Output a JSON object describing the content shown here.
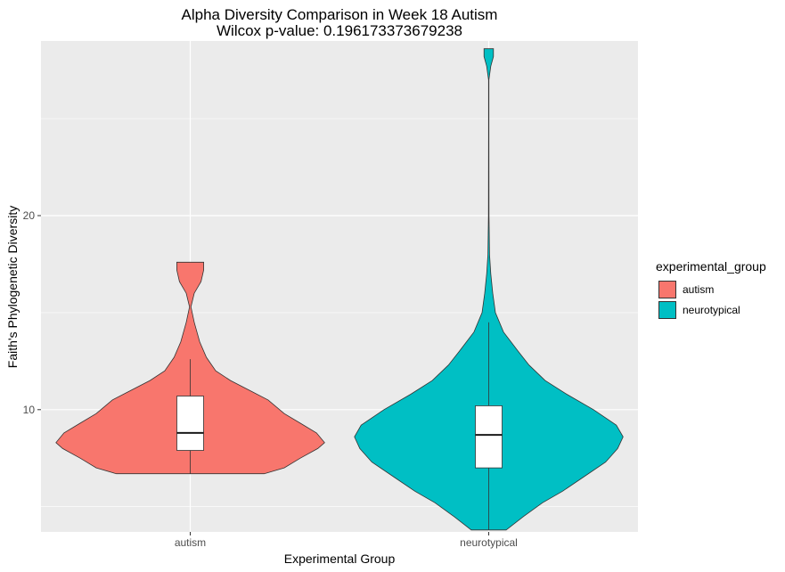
{
  "chart_data": {
    "type": "violin",
    "title": "Alpha Diversity Comparison in Week 18 Autism",
    "subtitle": "Wilcox p-value: 0.196173373679238",
    "xlabel": "Experimental Group",
    "ylabel": "Faith's Phylogenetic Diversity",
    "ylim": [
      3.7,
      29.0
    ],
    "yticks": [
      10,
      20
    ],
    "legend_title": "experimental_group",
    "legend_position": "right",
    "grid": true,
    "categories": [
      "autism",
      "neurotypical"
    ],
    "groups": [
      {
        "name": "autism",
        "color": "#F8766D",
        "box": {
          "whisker_low": 6.7,
          "q1": 7.9,
          "median": 8.8,
          "q3": 10.7,
          "whisker_high": 12.6
        },
        "violin_range": [
          6.7,
          17.6
        ],
        "violin_halfwidth": [
          [
            6.7,
            0.55
          ],
          [
            7.0,
            0.7
          ],
          [
            7.5,
            0.82
          ],
          [
            8.0,
            0.95
          ],
          [
            8.3,
            1.0
          ],
          [
            8.8,
            0.94
          ],
          [
            9.3,
            0.82
          ],
          [
            9.8,
            0.7
          ],
          [
            10.5,
            0.58
          ],
          [
            11.0,
            0.44
          ],
          [
            11.5,
            0.3
          ],
          [
            12.0,
            0.19
          ],
          [
            12.7,
            0.12
          ],
          [
            13.5,
            0.07
          ],
          [
            14.5,
            0.03
          ],
          [
            15.3,
            0.005
          ],
          [
            16.0,
            0.03
          ],
          [
            16.6,
            0.08
          ],
          [
            17.2,
            0.1
          ],
          [
            17.6,
            0.1
          ]
        ]
      },
      {
        "name": "neurotypical",
        "color": "#00BFC4",
        "box": {
          "whisker_low": 3.8,
          "q1": 7.0,
          "median": 8.7,
          "q3": 10.2,
          "whisker_high": 14.5
        },
        "violin_range": [
          3.8,
          28.6
        ],
        "violin_halfwidth": [
          [
            3.8,
            0.13
          ],
          [
            4.5,
            0.26
          ],
          [
            5.2,
            0.4
          ],
          [
            5.8,
            0.55
          ],
          [
            6.5,
            0.7
          ],
          [
            7.3,
            0.87
          ],
          [
            8.0,
            0.96
          ],
          [
            8.6,
            1.0
          ],
          [
            9.2,
            0.95
          ],
          [
            10.0,
            0.78
          ],
          [
            10.8,
            0.58
          ],
          [
            11.5,
            0.42
          ],
          [
            12.3,
            0.3
          ],
          [
            13.0,
            0.22
          ],
          [
            14.0,
            0.11
          ],
          [
            15.0,
            0.05
          ],
          [
            16.0,
            0.03
          ],
          [
            17.0,
            0.015
          ],
          [
            18.0,
            0.006
          ],
          [
            20.0,
            0.002
          ],
          [
            24.0,
            0.001
          ],
          [
            27.0,
            0.001
          ],
          [
            27.7,
            0.015
          ],
          [
            28.2,
            0.035
          ],
          [
            28.6,
            0.035
          ]
        ]
      }
    ]
  }
}
